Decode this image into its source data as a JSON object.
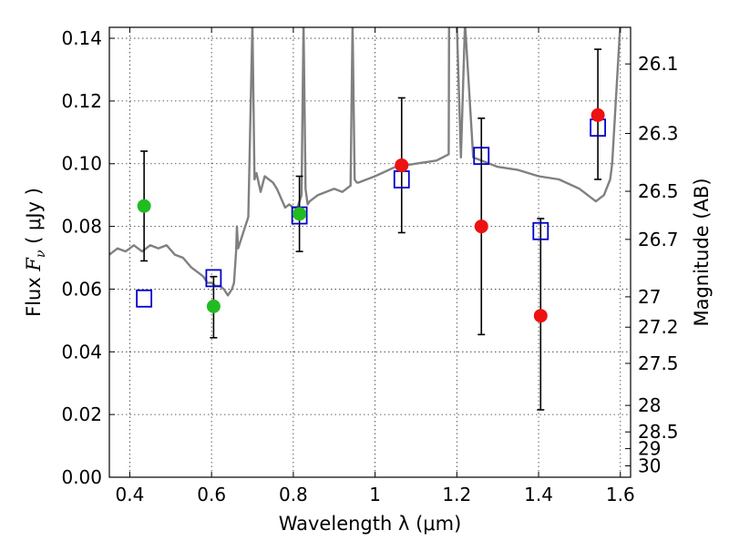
{
  "chart_data": {
    "type": "scatter",
    "xlabel": "Wavelength  λ (μm)",
    "ylabel_prefix": "Flux  ",
    "ylabel_symbol": "F",
    "ylabel_sub": "ν",
    "ylabel_suffix": "  ( μJy )",
    "y2label": "Magnitude (AB)",
    "xlim": [
      0.35,
      1.625
    ],
    "ylim": [
      0.0,
      0.1435
    ],
    "xticks": [
      {
        "value": 0.4,
        "label": "0.4"
      },
      {
        "value": 0.6,
        "label": "0.6"
      },
      {
        "value": 0.8,
        "label": "0.8"
      },
      {
        "value": 1.0,
        "label": "1"
      },
      {
        "value": 1.2,
        "label": "1.2"
      },
      {
        "value": 1.4,
        "label": "1.4"
      },
      {
        "value": 1.6,
        "label": "1.6"
      }
    ],
    "yticks": [
      {
        "value": 0.0,
        "label": "0.00"
      },
      {
        "value": 0.02,
        "label": "0.02"
      },
      {
        "value": 0.04,
        "label": "0.04"
      },
      {
        "value": 0.06,
        "label": "0.06"
      },
      {
        "value": 0.08,
        "label": "0.08"
      },
      {
        "value": 0.1,
        "label": "0.10"
      },
      {
        "value": 0.12,
        "label": "0.12"
      },
      {
        "value": 0.14,
        "label": "0.14"
      }
    ],
    "magnitude_ticks": [
      {
        "value": 26.1,
        "label": "26.1"
      },
      {
        "value": 26.3,
        "label": "26.3"
      },
      {
        "value": 26.5,
        "label": "26.5"
      },
      {
        "value": 26.7,
        "label": "26.7"
      },
      {
        "value": 27.0,
        "label": "27"
      },
      {
        "value": 27.2,
        "label": "27.2"
      },
      {
        "value": 27.5,
        "label": "27.5"
      },
      {
        "value": 28.0,
        "label": "28"
      },
      {
        "value": 28.5,
        "label": "28.5"
      },
      {
        "value": 29.0,
        "label": "29"
      },
      {
        "value": 30.0,
        "label": "30"
      }
    ],
    "grid": true,
    "colors": {
      "model": "#808080",
      "measured_green": "#22bb22",
      "measured_red": "#ee1111",
      "model_box": "#0000cc",
      "errorbar": "#000000"
    },
    "series": [
      {
        "name": "model-spectrum",
        "type": "line",
        "x": [
          0.35,
          0.37,
          0.39,
          0.41,
          0.43,
          0.45,
          0.47,
          0.49,
          0.51,
          0.53,
          0.55,
          0.57,
          0.58,
          0.59,
          0.6,
          0.61,
          0.62,
          0.63,
          0.64,
          0.65,
          0.655,
          0.66,
          0.662,
          0.665,
          0.67,
          0.675,
          0.68,
          0.69,
          0.7,
          0.705,
          0.71,
          0.72,
          0.73,
          0.74,
          0.75,
          0.76,
          0.77,
          0.78,
          0.79,
          0.8,
          0.81,
          0.82,
          0.825,
          0.83,
          0.835,
          0.84,
          0.86,
          0.88,
          0.9,
          0.92,
          0.94,
          0.945,
          0.95,
          0.955,
          0.96,
          1.0,
          1.05,
          1.1,
          1.15,
          1.18,
          1.181,
          1.19,
          1.2,
          1.21,
          1.22,
          1.24,
          1.26,
          1.28,
          1.3,
          1.35,
          1.4,
          1.45,
          1.5,
          1.52,
          1.54,
          1.56,
          1.575,
          1.58,
          1.6,
          1.61,
          1.62
        ],
        "y": [
          0.071,
          0.073,
          0.072,
          0.074,
          0.072,
          0.074,
          0.073,
          0.074,
          0.071,
          0.07,
          0.067,
          0.065,
          0.064,
          0.062,
          0.062,
          0.061,
          0.061,
          0.06,
          0.058,
          0.06,
          0.062,
          0.072,
          0.08,
          0.073,
          0.075,
          0.077,
          0.079,
          0.083,
          0.145,
          0.095,
          0.097,
          0.091,
          0.096,
          0.095,
          0.094,
          0.092,
          0.089,
          0.086,
          0.087,
          0.086,
          0.086,
          0.09,
          0.145,
          0.092,
          0.087,
          0.088,
          0.09,
          0.091,
          0.092,
          0.091,
          0.093,
          0.145,
          0.095,
          0.094,
          0.094,
          0.096,
          0.099,
          0.1,
          0.101,
          0.103,
          0.145,
          0.145,
          0.145,
          0.102,
          0.145,
          0.102,
          0.101,
          0.1,
          0.099,
          0.098,
          0.096,
          0.095,
          0.092,
          0.09,
          0.088,
          0.09,
          0.095,
          0.1,
          0.145,
          0.145,
          0.145
        ]
      },
      {
        "name": "model-photometry",
        "type": "scatter",
        "marker": "square",
        "x": [
          0.435,
          0.605,
          0.815,
          1.065,
          1.26,
          1.405,
          1.545
        ],
        "y": [
          0.057,
          0.0635,
          0.0835,
          0.095,
          0.1025,
          0.0785,
          0.1115
        ]
      },
      {
        "name": "observed-green",
        "type": "scatter",
        "marker": "circle",
        "x": [
          0.435,
          0.605,
          0.815
        ],
        "y": [
          0.0865,
          0.0545,
          0.084
        ]
      },
      {
        "name": "observed-red",
        "type": "scatter",
        "marker": "circle",
        "x": [
          1.065,
          1.26,
          1.405,
          1.545
        ],
        "y": [
          0.0995,
          0.08,
          0.0515,
          0.1155
        ]
      },
      {
        "name": "error-bars",
        "type": "errorbar",
        "x": [
          0.435,
          0.605,
          0.815,
          1.065,
          1.26,
          1.405,
          1.545
        ],
        "low": [
          0.069,
          0.0445,
          0.072,
          0.078,
          0.0455,
          0.0215,
          0.095
        ],
        "high": [
          0.104,
          0.064,
          0.096,
          0.121,
          0.1145,
          0.0825,
          0.1365
        ]
      }
    ]
  }
}
